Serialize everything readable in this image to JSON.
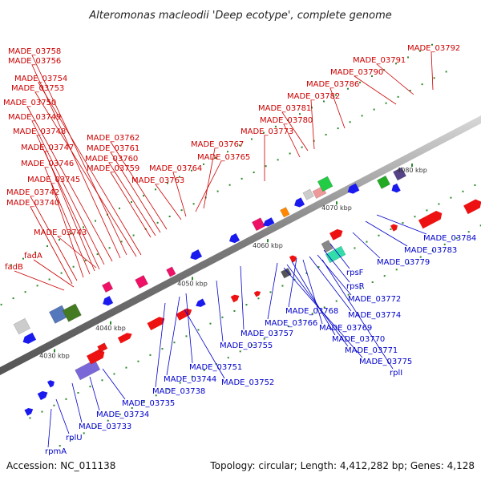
{
  "title": "Alteromonas macleodii 'Deep ecotype', complete genome",
  "accession": "Accession: NC_011138",
  "summary": "Topology: circular; Length: 4,412,282 bp; Genes: 4,128",
  "colors": {
    "upper_label": "#cc0000",
    "lower_label": "#0000cc",
    "backbone": "#808080"
  },
  "tick_labels": [
    "4030 kbp",
    "4040 kbp",
    "4050 kbp",
    "4060 kbp",
    "4070 kbp",
    "4080 kbp"
  ],
  "upper_labels": [
    "MADE_03758",
    "MADE_03756",
    "MADE_03754",
    "MADE_03753",
    "MADE_03750",
    "MADE_03749",
    "MADE_03748",
    "MADE_03747",
    "MADE_03746",
    "MADE_03745",
    "MADE_03742",
    "MADE_03740",
    "MADE_03743",
    "fadA",
    "fadB",
    "MADE_03762",
    "MADE_03761",
    "MADE_03760",
    "MADE_03759",
    "MADE_03764",
    "MADE_03763",
    "MADE_03765",
    "MADE_03767",
    "MADE_03773",
    "MADE_03780",
    "MADE_03781",
    "MADE_03782",
    "MADE_03786",
    "MADE_03790",
    "MADE_03791",
    "MADE_03792"
  ],
  "lower_labels": [
    "MADE_03784",
    "MADE_03783",
    "MADE_03779",
    "rpsF",
    "rpsR",
    "MADE_03772",
    "MADE_03774",
    "MADE_03768",
    "MADE_03769",
    "MADE_03766",
    "MADE_03770",
    "MADE_03771",
    "MADE_03775",
    "rplI",
    "MADE_03757",
    "MADE_03755",
    "MADE_03751",
    "MADE_03744",
    "MADE_03752",
    "MADE_03738",
    "MADE_03735",
    "MADE_03734",
    "MADE_03733",
    "rplU",
    "rpmA"
  ]
}
